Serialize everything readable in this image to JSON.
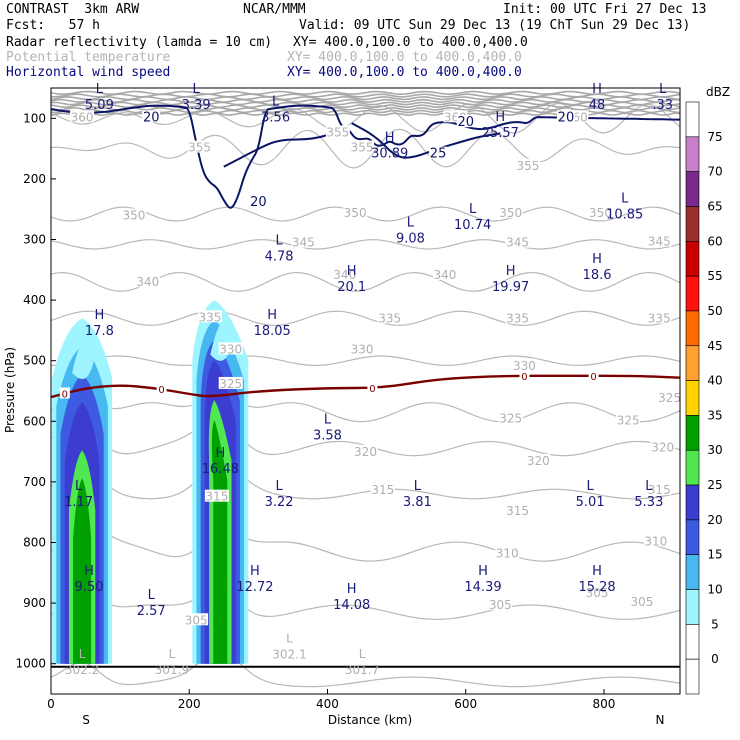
{
  "header": {
    "model": "CONTRAST  3km ARW",
    "org": "NCAR/MMM",
    "init": "Init: 00 UTC Fri 27 Dec 13",
    "fcst": "Fcst:   57 h",
    "valid": "Valid: 09 UTC Sun 29 Dec 13 (19 ChT Sun 29 Dec 13)",
    "fields": [
      {
        "label": "Radar reflectivity (lamda = 10 cm)",
        "xy": "XY= 400.0,100.0 to 400.0,400.0",
        "color": "#000000"
      },
      {
        "label": "Potential temperature",
        "xy": "XY= 400.0,100.0 to 400.0,400.0",
        "color": "#b4b4b4"
      },
      {
        "label": "Horizontal wind speed",
        "xy": "XY= 400.0,100.0 to 400.0,400.0",
        "color": "#0a0a80"
      }
    ]
  },
  "chart_data": {
    "type": "cross-section",
    "xlabel": "Distance (km)",
    "ylabel": "Pressure (hPa)",
    "xlim": [
      0,
      910
    ],
    "ylim": [
      1050,
      50
    ],
    "x_ticks": [
      0,
      200,
      400,
      600,
      800
    ],
    "y_ticks": [
      100,
      200,
      300,
      400,
      500,
      600,
      700,
      800,
      900,
      1000
    ],
    "x_end_labels": {
      "left": "S",
      "right": "N"
    },
    "colorbar": {
      "units": "dBZ",
      "levels": [
        0,
        5,
        10,
        15,
        20,
        25,
        30,
        35,
        40,
        45,
        50,
        55,
        60,
        65,
        70,
        75
      ],
      "colors": [
        "#ffffff",
        "#ffffff",
        "#9ef5ff",
        "#48b8f0",
        "#3e5ae0",
        "#3c3cd0",
        "#50e850",
        "#00a000",
        "#ffd200",
        "#ffa030",
        "#ff6a00",
        "#ff1010",
        "#c80000",
        "#9a3030",
        "#7a2a8c",
        "#c880c8",
        "#ffffff"
      ]
    },
    "reflectivity_cells": [
      {
        "x_center": 45,
        "p_top": 430,
        "p_bottom": 1000,
        "max_dbz": 35
      },
      {
        "x_center": 245,
        "p_top": 400,
        "p_bottom": 1000,
        "max_dbz": 35
      }
    ],
    "theta_contours": {
      "levels": [
        300,
        305,
        310,
        315,
        320,
        325,
        330,
        335,
        340,
        345,
        350,
        355,
        360
      ],
      "labels": [
        {
          "text": "355",
          "x": 215,
          "p": 150
        },
        {
          "text": "355",
          "x": 450,
          "p": 150
        },
        {
          "text": "355",
          "x": 690,
          "p": 180
        },
        {
          "text": "360",
          "x": 45,
          "p": 100
        },
        {
          "text": "360",
          "x": 585,
          "p": 100
        },
        {
          "text": "360",
          "x": 760,
          "p": 100
        },
        {
          "text": "355",
          "x": 415,
          "p": 125
        },
        {
          "text": "350",
          "x": 120,
          "p": 262
        },
        {
          "text": "350",
          "x": 440,
          "p": 258
        },
        {
          "text": "350",
          "x": 665,
          "p": 258
        },
        {
          "text": "350",
          "x": 795,
          "p": 258
        },
        {
          "text": "345",
          "x": 365,
          "p": 307
        },
        {
          "text": "345",
          "x": 675,
          "p": 307
        },
        {
          "text": "345",
          "x": 880,
          "p": 305
        },
        {
          "text": "340",
          "x": 140,
          "p": 372
        },
        {
          "text": "340",
          "x": 425,
          "p": 360
        },
        {
          "text": "340",
          "x": 570,
          "p": 360
        },
        {
          "text": "335",
          "x": 230,
          "p": 430
        },
        {
          "text": "335",
          "x": 490,
          "p": 432
        },
        {
          "text": "335",
          "x": 675,
          "p": 432
        },
        {
          "text": "335",
          "x": 880,
          "p": 432
        },
        {
          "text": "330",
          "x": 260,
          "p": 483
        },
        {
          "text": "330",
          "x": 450,
          "p": 483
        },
        {
          "text": "330",
          "x": 685,
          "p": 510
        },
        {
          "text": "325",
          "x": 260,
          "p": 540
        },
        {
          "text": "325",
          "x": 665,
          "p": 597
        },
        {
          "text": "325",
          "x": 835,
          "p": 600
        },
        {
          "text": "325",
          "x": 895,
          "p": 563
        },
        {
          "text": "320",
          "x": 455,
          "p": 652
        },
        {
          "text": "320",
          "x": 705,
          "p": 667
        },
        {
          "text": "320",
          "x": 885,
          "p": 645
        },
        {
          "text": "315",
          "x": 240,
          "p": 726
        },
        {
          "text": "315",
          "x": 480,
          "p": 715
        },
        {
          "text": "315",
          "x": 675,
          "p": 750
        },
        {
          "text": "315",
          "x": 880,
          "p": 715
        },
        {
          "text": "310",
          "x": 660,
          "p": 820
        },
        {
          "text": "310",
          "x": 875,
          "p": 800
        },
        {
          "text": "305",
          "x": 210,
          "p": 930
        },
        {
          "text": "305",
          "x": 650,
          "p": 905
        },
        {
          "text": "305",
          "x": 790,
          "p": 885
        },
        {
          "text": "305",
          "x": 855,
          "p": 900
        }
      ],
      "extrema": [
        {
          "kind": "L",
          "value": "302.2",
          "x": 45,
          "p": 1010
        },
        {
          "kind": "L",
          "value": "301.9",
          "x": 175,
          "p": 1010
        },
        {
          "kind": "L",
          "value": "302.1",
          "x": 345,
          "p": 985
        },
        {
          "kind": "L",
          "value": "301.7",
          "x": 450,
          "p": 1010
        }
      ]
    },
    "wind_contours": {
      "levels": [
        20,
        25
      ],
      "labels": [
        {
          "text": "20",
          "x": 145,
          "p": 100
        },
        {
          "text": "20",
          "x": 300,
          "p": 240
        },
        {
          "text": "20",
          "x": 600,
          "p": 108
        },
        {
          "text": "20",
          "x": 745,
          "p": 100
        },
        {
          "text": "25",
          "x": 560,
          "p": 160
        }
      ],
      "extrema": [
        {
          "kind": "L",
          "value": "5.09",
          "x": 70,
          "p": 80
        },
        {
          "kind": "L",
          "value": "3.39",
          "x": 210,
          "p": 80
        },
        {
          "kind": "L",
          "value": "3.56",
          "x": 325,
          "p": 100
        },
        {
          "kind": "H",
          "value": "30.89",
          "x": 490,
          "p": 160
        },
        {
          "kind": "H",
          "value": "25.57",
          "x": 650,
          "p": 126
        },
        {
          "kind": "H",
          "value": "48",
          "x": 790,
          "p": 80
        },
        {
          "kind": "L",
          "value": ".33",
          "x": 885,
          "p": 80
        },
        {
          "kind": "L",
          "value": "10.85",
          "x": 830,
          "p": 260
        },
        {
          "kind": "L",
          "value": "10.74",
          "x": 610,
          "p": 278
        },
        {
          "kind": "L",
          "value": "9.08",
          "x": 520,
          "p": 300
        },
        {
          "kind": "L",
          "value": "4.78",
          "x": 330,
          "p": 330
        },
        {
          "kind": "H",
          "value": "20.1",
          "x": 435,
          "p": 380
        },
        {
          "kind": "H",
          "value": "19.97",
          "x": 665,
          "p": 380
        },
        {
          "kind": "H",
          "value": "18.6",
          "x": 790,
          "p": 360
        },
        {
          "kind": "H",
          "value": "17.8",
          "x": 70,
          "p": 453
        },
        {
          "kind": "H",
          "value": "18.05",
          "x": 320,
          "p": 453
        },
        {
          "kind": "L",
          "value": "3.58",
          "x": 400,
          "p": 625
        },
        {
          "kind": "H",
          "value": "16.48",
          "x": 245,
          "p": 680
        },
        {
          "kind": "L",
          "value": "1.17",
          "x": 40,
          "p": 735
        },
        {
          "kind": "L",
          "value": "3.22",
          "x": 330,
          "p": 735
        },
        {
          "kind": "L",
          "value": "3.81",
          "x": 530,
          "p": 735
        },
        {
          "kind": "L",
          "value": "5.01",
          "x": 780,
          "p": 735
        },
        {
          "kind": "L",
          "value": "5.33",
          "x": 865,
          "p": 735
        },
        {
          "kind": "H",
          "value": "9.50",
          "x": 55,
          "p": 875
        },
        {
          "kind": "L",
          "value": "2.57",
          "x": 145,
          "p": 915
        },
        {
          "kind": "H",
          "value": "12.72",
          "x": 295,
          "p": 875
        },
        {
          "kind": "H",
          "value": "14.08",
          "x": 435,
          "p": 905
        },
        {
          "kind": "H",
          "value": "14.39",
          "x": 625,
          "p": 875
        },
        {
          "kind": "H",
          "value": "15.28",
          "x": 790,
          "p": 875
        }
      ]
    },
    "freezing_level": {
      "label": "0",
      "points": [
        [
          0,
          560
        ],
        [
          50,
          545
        ],
        [
          100,
          540
        ],
        [
          150,
          545
        ],
        [
          200,
          555
        ],
        [
          230,
          560
        ],
        [
          300,
          550
        ],
        [
          400,
          545
        ],
        [
          480,
          545
        ],
        [
          560,
          530
        ],
        [
          650,
          525
        ],
        [
          750,
          525
        ],
        [
          850,
          525
        ],
        [
          910,
          528
        ]
      ],
      "label_x": [
        20,
        160,
        465,
        685,
        785
      ]
    }
  }
}
